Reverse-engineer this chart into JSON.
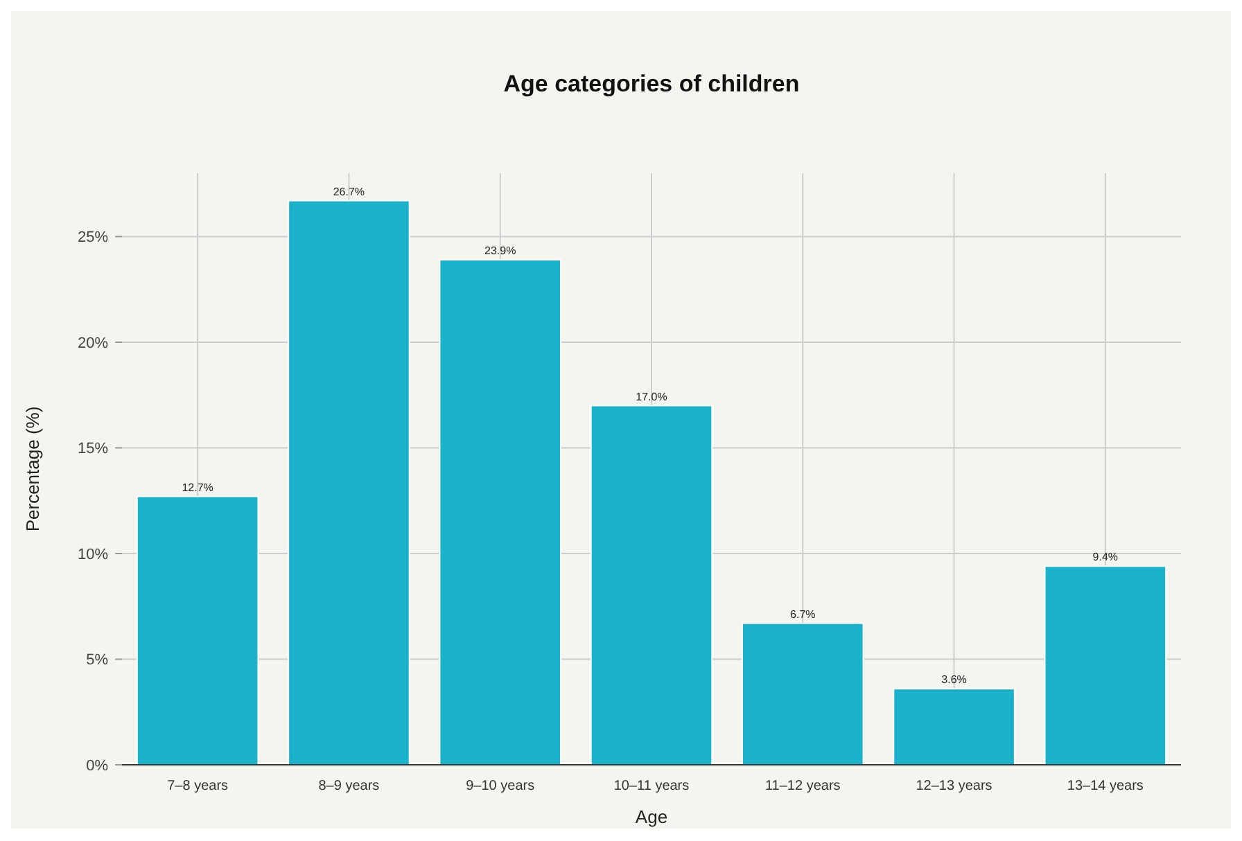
{
  "chart_data": {
    "type": "bar",
    "title": "Age categories of children",
    "xlabel": "Age",
    "ylabel": "Percentage (%)",
    "categories": [
      "7–8 years",
      "8–9 years",
      "9–10 years",
      "10–11 years",
      "11–12 years",
      "12–13 years",
      "13–14 years"
    ],
    "values": [
      12.7,
      26.7,
      23.9,
      17.0,
      6.7,
      3.6,
      9.4
    ],
    "value_labels": [
      "12.7%",
      "26.7%",
      "23.9%",
      "17.0%",
      "6.7%",
      "3.6%",
      "9.4%"
    ],
    "color": "#1ab2cb",
    "ylim": [
      0,
      28
    ],
    "yticks": [
      {
        "value": 0,
        "label": "0%"
      },
      {
        "value": 5,
        "label": "5%"
      },
      {
        "value": 10,
        "label": "10%"
      },
      {
        "value": 15,
        "label": "15%"
      },
      {
        "value": 20,
        "label": "20%"
      },
      {
        "value": 25,
        "label": "25%"
      }
    ],
    "grid": true
  }
}
